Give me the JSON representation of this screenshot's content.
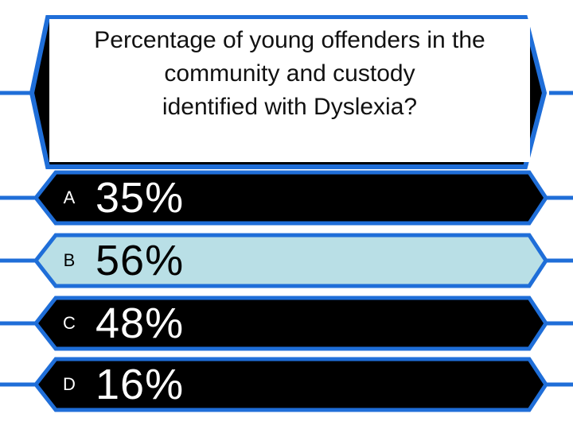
{
  "question": {
    "lines": [
      "Percentage of young offenders in the",
      "community and custody",
      "identified with Dyslexia?"
    ]
  },
  "answers": [
    {
      "letter": "A",
      "value": "35%",
      "state": "default"
    },
    {
      "letter": "B",
      "value": "56%",
      "state": "selected"
    },
    {
      "letter": "C",
      "value": "48%",
      "state": "default"
    },
    {
      "letter": "D",
      "value": "16%",
      "state": "default"
    }
  ],
  "colors": {
    "frame_blue": "#1f6ed8",
    "panel_black": "#000000",
    "selected_fill": "#b9dfe6",
    "question_fill": "#ffffff"
  }
}
